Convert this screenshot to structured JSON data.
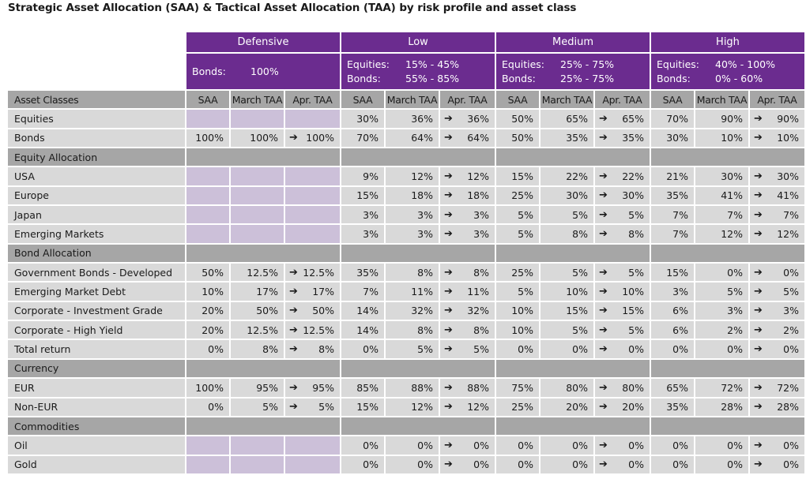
{
  "title": "Strategic Asset Allocation (SAA) & Tactical Asset Allocation (TAA) by risk profile and asset class",
  "arrow": "➔",
  "profiles": [
    {
      "name": "Defensive",
      "lines": [
        {
          "k": "Bonds:",
          "v": "100%"
        }
      ]
    },
    {
      "name": "Low",
      "lines": [
        {
          "k": "Equities:",
          "v": "15% - 45%"
        },
        {
          "k": "Bonds:",
          "v": "55% - 85%"
        }
      ]
    },
    {
      "name": "Medium",
      "lines": [
        {
          "k": "Equities:",
          "v": "25% - 75%"
        },
        {
          "k": "Bonds:",
          "v": "25% - 75%"
        }
      ]
    },
    {
      "name": "High",
      "lines": [
        {
          "k": "Equities:",
          "v": "40% - 100%"
        },
        {
          "k": "Bonds:",
          "v": "0% - 60%"
        }
      ]
    }
  ],
  "header": {
    "first": "Asset Classes",
    "cols": [
      "SAA",
      "March TAA",
      "Apr. TAA"
    ]
  },
  "rows": [
    {
      "label": "Equities",
      "type": "data",
      "groups": [
        null,
        [
          "30%",
          "36%",
          "36%"
        ],
        [
          "50%",
          "65%",
          "65%"
        ],
        [
          "70%",
          "90%",
          "90%"
        ]
      ]
    },
    {
      "label": "Bonds",
      "type": "data",
      "groups": [
        [
          "100%",
          "100%",
          "100%"
        ],
        [
          "70%",
          "64%",
          "64%"
        ],
        [
          "50%",
          "35%",
          "35%"
        ],
        [
          "30%",
          "10%",
          "10%"
        ]
      ]
    },
    {
      "label": "Equity Allocation",
      "type": "section"
    },
    {
      "label": "USA",
      "type": "data",
      "groups": [
        null,
        [
          "9%",
          "12%",
          "12%"
        ],
        [
          "15%",
          "22%",
          "22%"
        ],
        [
          "21%",
          "30%",
          "30%"
        ]
      ]
    },
    {
      "label": "Europe",
      "type": "data",
      "groups": [
        null,
        [
          "15%",
          "18%",
          "18%"
        ],
        [
          "25%",
          "30%",
          "30%"
        ],
        [
          "35%",
          "41%",
          "41%"
        ]
      ]
    },
    {
      "label": "Japan",
      "type": "data",
      "groups": [
        null,
        [
          "3%",
          "3%",
          "3%"
        ],
        [
          "5%",
          "5%",
          "5%"
        ],
        [
          "7%",
          "7%",
          "7%"
        ]
      ]
    },
    {
      "label": "Emerging Markets",
      "type": "data",
      "groups": [
        null,
        [
          "3%",
          "3%",
          "3%"
        ],
        [
          "5%",
          "8%",
          "8%"
        ],
        [
          "7%",
          "12%",
          "12%"
        ]
      ]
    },
    {
      "label": "Bond Allocation",
      "type": "section"
    },
    {
      "label": "Government Bonds - Developed",
      "type": "data",
      "groups": [
        [
          "50%",
          "12.5%",
          "12.5%"
        ],
        [
          "35%",
          "8%",
          "8%"
        ],
        [
          "25%",
          "5%",
          "5%"
        ],
        [
          "15%",
          "0%",
          "0%"
        ]
      ]
    },
    {
      "label": "Emerging Market Debt",
      "type": "data",
      "groups": [
        [
          "10%",
          "17%",
          "17%"
        ],
        [
          "7%",
          "11%",
          "11%"
        ],
        [
          "5%",
          "10%",
          "10%"
        ],
        [
          "3%",
          "5%",
          "5%"
        ]
      ]
    },
    {
      "label": "Corporate - Investment Grade",
      "type": "data",
      "groups": [
        [
          "20%",
          "50%",
          "50%"
        ],
        [
          "14%",
          "32%",
          "32%"
        ],
        [
          "10%",
          "15%",
          "15%"
        ],
        [
          "6%",
          "3%",
          "3%"
        ]
      ]
    },
    {
      "label": "Corporate - High Yield",
      "type": "data",
      "groups": [
        [
          "20%",
          "12.5%",
          "12.5%"
        ],
        [
          "14%",
          "8%",
          "8%"
        ],
        [
          "10%",
          "5%",
          "5%"
        ],
        [
          "6%",
          "2%",
          "2%"
        ]
      ]
    },
    {
      "label": "Total return",
      "type": "data",
      "groups": [
        [
          "0%",
          "8%",
          "8%"
        ],
        [
          "0%",
          "5%",
          "5%"
        ],
        [
          "0%",
          "0%",
          "0%"
        ],
        [
          "0%",
          "0%",
          "0%"
        ]
      ]
    },
    {
      "label": "Currency",
      "type": "section"
    },
    {
      "label": "EUR",
      "type": "data",
      "groups": [
        [
          "100%",
          "95%",
          "95%"
        ],
        [
          "85%",
          "88%",
          "88%"
        ],
        [
          "75%",
          "80%",
          "80%"
        ],
        [
          "65%",
          "72%",
          "72%"
        ]
      ]
    },
    {
      "label": "Non-EUR",
      "type": "data",
      "groups": [
        [
          "0%",
          "5%",
          "5%"
        ],
        [
          "15%",
          "12%",
          "12%"
        ],
        [
          "25%",
          "20%",
          "20%"
        ],
        [
          "35%",
          "28%",
          "28%"
        ]
      ]
    },
    {
      "label": "Commodities",
      "type": "section"
    },
    {
      "label": "Oil",
      "type": "data",
      "groups": [
        null,
        [
          "0%",
          "0%",
          "0%"
        ],
        [
          "0%",
          "0%",
          "0%"
        ],
        [
          "0%",
          "0%",
          "0%"
        ]
      ]
    },
    {
      "label": "Gold",
      "type": "data",
      "groups": [
        null,
        [
          "0%",
          "0%",
          "0%"
        ],
        [
          "0%",
          "0%",
          "0%"
        ],
        [
          "0%",
          "0%",
          "0%"
        ]
      ]
    }
  ]
}
